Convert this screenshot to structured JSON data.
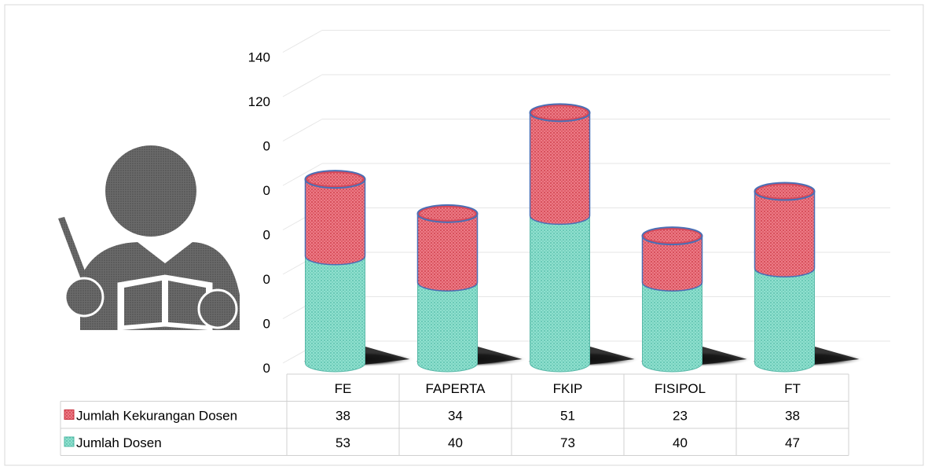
{
  "chart_data": {
    "type": "bar",
    "stacked": true,
    "style": "3d-cylinder",
    "categories": [
      "FE",
      "FAPERTA",
      "FKIP",
      "FISIPOL",
      "FT"
    ],
    "series": [
      {
        "name": "Jumlah Dosen",
        "values": [
          53,
          40,
          73,
          40,
          47
        ],
        "color": "#7fd9c6"
      },
      {
        "name": "Jumlah Kekurangan Dosen",
        "values": [
          38,
          34,
          51,
          23,
          38
        ],
        "color": "#e4606c"
      }
    ],
    "y_ticks": [
      "0",
      "0",
      "0",
      "0",
      "0",
      "0",
      "120",
      "140"
    ],
    "ylim": [
      0,
      140
    ],
    "grid": true,
    "legend": "data-table-below",
    "data_table": true
  },
  "decoration": {
    "icon": "person-reading-book-icon"
  }
}
